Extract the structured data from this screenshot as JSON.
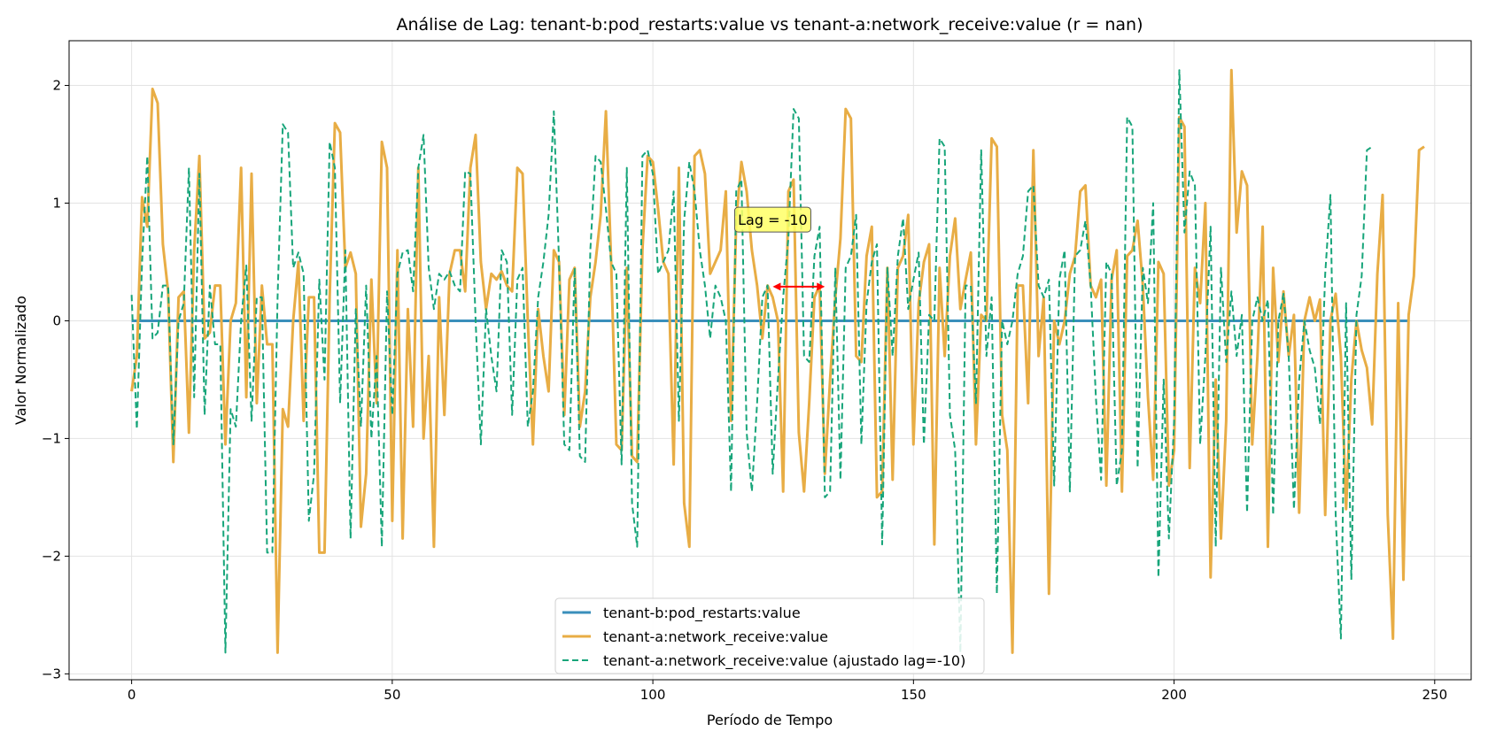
{
  "chart_data": {
    "type": "line",
    "title": "Análise de Lag: tenant-b:pod_restarts:value vs tenant-a:network_receive:value (r = nan)",
    "xlabel": "Período de Tempo",
    "ylabel": "Valor Normalizado",
    "xlim": [
      -12,
      257
    ],
    "ylim": [
      -3.05,
      2.38
    ],
    "xticks": [
      0,
      50,
      100,
      150,
      200,
      250
    ],
    "yticks": [
      -3,
      -2,
      -1,
      0,
      1,
      2
    ],
    "ytick_labels": [
      "−3",
      "−2",
      "−1",
      "0",
      "1",
      "2"
    ],
    "grid": true,
    "legend_position": "lower center",
    "lag": -10,
    "annotation": {
      "text": "Lag = -10",
      "text_x": 123,
      "text_y": 0.86,
      "arrow_x_start": 123,
      "arrow_x_end": 133,
      "arrow_y": 0.29,
      "box_color": "#ffff66",
      "arrow_color": "#ff0000"
    },
    "series": [
      {
        "name": "tenant-b:pod_restarts:value",
        "color": "#3a8fbb",
        "style": "solid",
        "x_start": 0,
        "values": [
          0,
          0
        ]
      },
      {
        "name": "tenant-a:network_receive:value",
        "color": "#e8ad45",
        "style": "solid",
        "x_start": 0,
        "values": [
          -0.6,
          -0.3,
          1.05,
          0.8,
          1.97,
          1.85,
          0.65,
          0.25,
          -1.2,
          0.2,
          0.25,
          -0.95,
          0.6,
          1.4,
          -0.15,
          -0.1,
          0.3,
          0.3,
          -1.05,
          0.0,
          0.15,
          1.3,
          -0.65,
          1.25,
          -0.7,
          0.3,
          -0.2,
          -0.2,
          -2.82,
          -0.75,
          -0.9,
          0.0,
          0.5,
          -0.85,
          0.2,
          0.2,
          -1.97,
          -1.97,
          0.2,
          1.68,
          1.6,
          0.45,
          0.58,
          0.4,
          -1.75,
          -1.3,
          0.35,
          -0.7,
          1.52,
          1.3,
          -1.7,
          0.6,
          -1.85,
          0.1,
          -0.9,
          1.3,
          -1.0,
          -0.3,
          -1.92,
          0.2,
          -0.8,
          0.4,
          0.6,
          0.6,
          0.25,
          1.3,
          1.58,
          0.5,
          0.1,
          0.4,
          0.35,
          0.42,
          0.3,
          0.25,
          1.3,
          1.25,
          0.0,
          -1.05,
          0.1,
          -0.3,
          -0.6,
          0.6,
          0.5,
          -0.8,
          0.35,
          0.45,
          -0.9,
          -0.6,
          0.2,
          0.5,
          0.9,
          1.78,
          0.5,
          -1.05,
          -1.1,
          0.45,
          -1.15,
          -1.2,
          0.6,
          1.4,
          1.35,
          0.95,
          0.5,
          0.4,
          -1.22,
          1.3,
          -1.55,
          -1.92,
          1.4,
          1.45,
          1.25,
          0.4,
          0.5,
          0.6,
          1.1,
          -0.85,
          0.85,
          1.35,
          1.1,
          0.6,
          0.3,
          -0.15,
          0.3,
          0.2,
          0.0,
          -1.45,
          1.1,
          1.2,
          -0.95,
          -1.45,
          -0.7,
          0.2,
          0.3,
          -1.3,
          -0.5,
          0.2,
          0.7,
          1.8,
          1.72,
          -0.3,
          -0.35,
          0.55,
          0.8,
          -1.5,
          -1.45,
          0.45,
          -1.35,
          0.45,
          0.55,
          0.9,
          -1.05,
          0.15,
          0.5,
          0.65,
          -1.9,
          0.45,
          -0.3,
          0.55,
          0.87,
          0.1,
          0.35,
          0.58,
          -1.05,
          0.05,
          0.0,
          1.55,
          1.48,
          -0.8,
          -1.1,
          -2.82,
          0.3,
          0.3,
          -0.7,
          1.45,
          -0.3,
          0.2,
          -2.32,
          0.0,
          -0.2,
          0.0,
          0.4,
          0.55,
          1.1,
          1.15,
          0.3,
          0.2,
          0.35,
          -1.4,
          0.35,
          0.6,
          -1.45,
          0.55,
          0.6,
          0.85,
          0.3,
          -0.65,
          -1.35,
          0.5,
          0.4,
          -1.4,
          -1.1,
          1.73,
          1.65,
          -1.25,
          0.45,
          0.15,
          1.0,
          -2.18,
          -0.5,
          -1.85,
          -0.85,
          2.13,
          0.75,
          1.27,
          1.15,
          -1.05,
          -0.3,
          0.8,
          -1.92,
          0.45,
          -0.35,
          0.25,
          -0.3,
          0.05,
          -1.63,
          0.0,
          0.2,
          0.0,
          0.18,
          -1.65,
          0.0,
          0.23,
          -0.3,
          -1.6,
          -0.5,
          0.0,
          -0.25,
          -0.4,
          -0.88,
          0.4,
          1.07,
          -1.65,
          -2.7,
          0.15,
          -2.2,
          0.05,
          0.38,
          1.45,
          1.48
        ]
      },
      {
        "name": "tenant-a:network_receive:value (ajustado lag=-10)",
        "color": "#17a57a",
        "style": "dashed",
        "x_start": 0,
        "values": [
          0.22,
          -0.92,
          0.5,
          1.4,
          -0.15,
          -0.1,
          0.3,
          0.3,
          -1.05,
          0.0,
          0.15,
          1.3,
          -0.65,
          1.25,
          -0.8,
          0.3,
          -0.2,
          -0.2,
          -2.82,
          -0.75,
          -0.9,
          0.0,
          0.47,
          -0.85,
          0.2,
          0.2,
          -1.97,
          -1.97,
          0.2,
          1.67,
          1.6,
          0.45,
          0.58,
          0.4,
          -1.7,
          -1.3,
          0.35,
          -0.5,
          1.52,
          1.3,
          -0.7,
          0.6,
          -1.85,
          0.1,
          -0.9,
          0.3,
          -1.0,
          -0.3,
          -1.92,
          0.25,
          -0.8,
          0.4,
          0.58,
          0.6,
          0.25,
          1.3,
          1.58,
          0.45,
          0.1,
          0.4,
          0.35,
          0.42,
          0.3,
          0.25,
          1.27,
          1.25,
          0.0,
          -1.05,
          0.1,
          -0.3,
          -0.6,
          0.6,
          0.5,
          -0.8,
          0.35,
          0.45,
          -0.9,
          -0.6,
          0.2,
          0.5,
          0.9,
          1.78,
          0.5,
          -1.05,
          -1.1,
          0.45,
          -1.15,
          -1.2,
          0.6,
          1.4,
          1.35,
          0.95,
          0.5,
          0.4,
          -1.22,
          1.3,
          -1.55,
          -1.92,
          1.4,
          1.45,
          1.25,
          0.4,
          0.5,
          0.6,
          1.1,
          -0.85,
          0.85,
          1.35,
          1.1,
          0.6,
          0.3,
          -0.15,
          0.3,
          0.2,
          0.0,
          -1.45,
          1.1,
          1.2,
          -0.95,
          -1.45,
          -0.7,
          0.2,
          0.3,
          -1.3,
          -0.5,
          0.2,
          0.7,
          1.8,
          1.72,
          -0.3,
          -0.35,
          0.55,
          0.8,
          -1.5,
          -1.45,
          0.45,
          -1.35,
          0.45,
          0.55,
          0.9,
          -1.05,
          0.15,
          0.5,
          0.65,
          -1.9,
          0.45,
          -0.3,
          0.55,
          0.87,
          0.1,
          0.35,
          0.58,
          -1.05,
          0.05,
          0.0,
          1.55,
          1.48,
          -0.8,
          -1.1,
          -2.82,
          0.3,
          0.3,
          -0.7,
          1.45,
          -0.3,
          0.2,
          -2.32,
          0.0,
          -0.2,
          0.0,
          0.4,
          0.55,
          1.1,
          1.15,
          0.3,
          0.2,
          0.35,
          -1.4,
          0.35,
          0.6,
          -1.45,
          0.55,
          0.6,
          0.85,
          0.3,
          -0.65,
          -1.35,
          0.5,
          0.4,
          -1.4,
          -1.1,
          1.73,
          1.65,
          -1.25,
          0.45,
          0.15,
          1.0,
          -2.18,
          -0.5,
          -1.85,
          -0.85,
          2.13,
          0.75,
          1.27,
          1.15,
          -1.05,
          -0.3,
          0.8,
          -1.92,
          0.45,
          -0.35,
          0.25,
          -0.3,
          0.05,
          -1.63,
          0.0,
          0.2,
          0.0,
          0.18,
          -1.65,
          0.0,
          0.23,
          -0.3,
          -1.6,
          -0.5,
          0.0,
          -0.25,
          -0.4,
          -0.88,
          0.4,
          1.07,
          -1.65,
          -2.7,
          0.15,
          -2.2,
          0.05,
          0.38,
          1.45,
          1.48
        ]
      }
    ]
  }
}
